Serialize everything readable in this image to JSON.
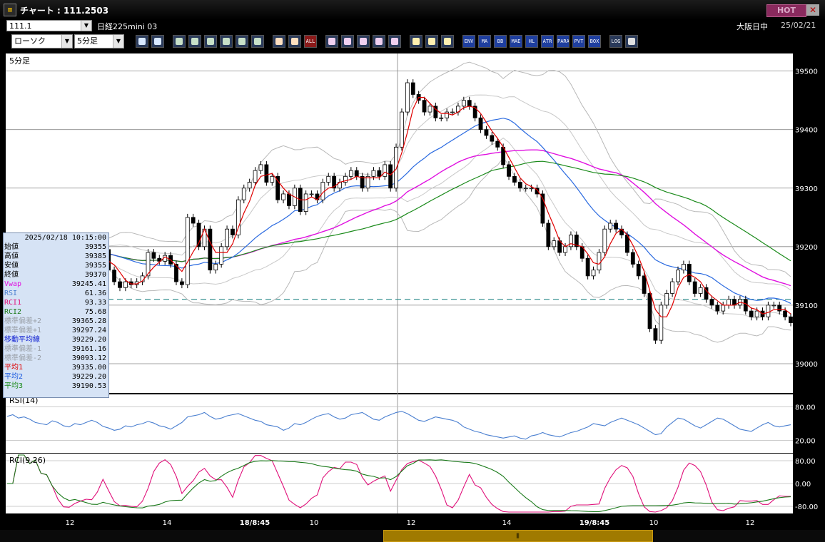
{
  "window": {
    "title": "チャート : 111.2503",
    "hot_label": "HOT",
    "close_label": "✕"
  },
  "header": {
    "code": "111.1",
    "symbol": "日経225mini 03",
    "market_status": "大阪日中",
    "date": "25/02/21"
  },
  "toolbar": {
    "chart_type": "ローソク",
    "interval": "5分足",
    "button_groups": [
      [
        "search-icon",
        "layout-icon"
      ],
      [
        "pen-icon",
        "line-tool-icon",
        "cursor-icon",
        "undo-icon",
        "list-icon",
        "trash-icon"
      ],
      [
        "candle-icon",
        "candle-alt-icon",
        "ALL"
      ],
      [
        "crosshair-icon",
        "zoom-icon",
        "bar-chart-icon",
        "signal-icon",
        "scale-icon"
      ],
      [
        "pattern-icon",
        "wrench-icon",
        "color-icon"
      ],
      [
        "ENV",
        "MA",
        "BB",
        "MAE",
        "HL",
        "ATR",
        "PARA",
        "PVT",
        "BOX"
      ],
      [
        "LOG",
        "window-icon"
      ]
    ]
  },
  "main_panel": {
    "label": "5分足",
    "y_ticks": [
      "39500",
      "39400",
      "39300",
      "39200",
      "39100",
      "39000"
    ],
    "y_tick_values": [
      39500,
      39400,
      39300,
      39200,
      39100,
      39000
    ],
    "y_range": [
      38950,
      39530
    ],
    "reference_price": 39110
  },
  "rsi_panel": {
    "label": "RSI(14)",
    "y_ticks": [
      "80.00",
      "20.00"
    ]
  },
  "rci_panel": {
    "label": "RCI(9,26)",
    "y_ticks": [
      "80.00",
      "0.00",
      "-80.00"
    ]
  },
  "x_axis": {
    "ticks": [
      "12",
      "14",
      "18/8:45",
      "10",
      "12",
      "14",
      "19/8:45",
      "10",
      "12"
    ]
  },
  "info_panel": {
    "datetime": "2025/02/18 10:15:00",
    "rows": [
      {
        "label": "始値",
        "value": "39355",
        "color": "#000000"
      },
      {
        "label": "高値",
        "value": "39385",
        "color": "#000000"
      },
      {
        "label": "安値",
        "value": "39355",
        "color": "#000000"
      },
      {
        "label": "終値",
        "value": "39370",
        "color": "#000000"
      },
      {
        "label": "Vwap",
        "value": "39245.41",
        "color": "#e010e0"
      },
      {
        "label": "RSI",
        "value": "61.36",
        "color": "#4a7fd0"
      },
      {
        "label": "RCI1",
        "value": "93.33",
        "color": "#e0107a"
      },
      {
        "label": "RCI2",
        "value": "75.68",
        "color": "#1a7a1a"
      },
      {
        "label": "標準偏差+2",
        "value": "39365.28",
        "color": "#9aa0a8"
      },
      {
        "label": "標準偏差+1",
        "value": "39297.24",
        "color": "#9aa0a8"
      },
      {
        "label": "移動平均線",
        "value": "39229.20",
        "color": "#0a1ad0"
      },
      {
        "label": "標準偏差-1",
        "value": "39161.16",
        "color": "#9aa0a8"
      },
      {
        "label": "標準偏差-2",
        "value": "39093.12",
        "color": "#9aa0a8"
      },
      {
        "label": "平均1",
        "value": "39335.00",
        "color": "#e00000"
      },
      {
        "label": "平均2",
        "value": "39229.20",
        "color": "#1a5ae0"
      },
      {
        "label": "平均3",
        "value": "39190.53",
        "color": "#1a8a1a"
      }
    ]
  },
  "chart_data": {
    "type": "line",
    "candle_close_series": [
      39190,
      39195,
      39200,
      39205,
      39198,
      39208,
      39195,
      39200,
      39190,
      39175,
      39170,
      39185,
      39195,
      39188,
      39175,
      39165,
      39180,
      39195,
      39160,
      39140,
      39130,
      39140,
      39135,
      39140,
      39150,
      39190,
      39180,
      39175,
      39185,
      39170,
      39140,
      39135,
      39250,
      39240,
      39200,
      39230,
      39160,
      39170,
      39200,
      39230,
      39220,
      39280,
      39300,
      39310,
      39330,
      39340,
      39310,
      39320,
      39280,
      39290,
      39270,
      39300,
      39260,
      39290,
      39290,
      39280,
      39310,
      39320,
      39300,
      39310,
      39320,
      39330,
      39320,
      39300,
      39320,
      39330,
      39320,
      39340,
      39300,
      39370,
      39430,
      39480,
      39460,
      39450,
      39430,
      39440,
      39420,
      39420,
      39430,
      39430,
      39440,
      39450,
      39440,
      39420,
      39400,
      39390,
      39380,
      39370,
      39340,
      39320,
      39310,
      39300,
      39300,
      39300,
      39290,
      39240,
      39200,
      39210,
      39190,
      39200,
      39220,
      39200,
      39180,
      39150,
      39160,
      39190,
      39230,
      39240,
      39230,
      39220,
      39190,
      39170,
      39150,
      39120,
      39060,
      39040,
      39100,
      39120,
      39140,
      39160,
      39170,
      39140,
      39120,
      39130,
      39110,
      39100,
      39090,
      39100,
      39110,
      39100,
      39110,
      39090,
      39080,
      39090,
      39080,
      39100,
      39100,
      39090,
      39080,
      39070
    ],
    "rsi_series": [
      63,
      66,
      60,
      62,
      58,
      52,
      50,
      48,
      55,
      52,
      46,
      44,
      50,
      48,
      52,
      56,
      52,
      45,
      42,
      38,
      40,
      46,
      44,
      48,
      50,
      54,
      51,
      46,
      44,
      40,
      46,
      52,
      62,
      64,
      66,
      70,
      63,
      58,
      60,
      64,
      66,
      68,
      64,
      60,
      56,
      54,
      48,
      46,
      44,
      38,
      42,
      50,
      48,
      52,
      58,
      63,
      66,
      68,
      62,
      58,
      60,
      66,
      68,
      70,
      64,
      58,
      56,
      62,
      66,
      70,
      72,
      68,
      62,
      56,
      54,
      58,
      62,
      60,
      58,
      56,
      52,
      44,
      40,
      36,
      34,
      30,
      28,
      26,
      24,
      26,
      28,
      24,
      22,
      28,
      30,
      34,
      30,
      28,
      26,
      30,
      34,
      36,
      40,
      44,
      50,
      48,
      46,
      52,
      56,
      60,
      56,
      52,
      48,
      42,
      36,
      30,
      32,
      44,
      52,
      60,
      58,
      52,
      46,
      42,
      48,
      54,
      60,
      58,
      52,
      46,
      40,
      38,
      36,
      42,
      48,
      52,
      46,
      44,
      46,
      48
    ]
  }
}
